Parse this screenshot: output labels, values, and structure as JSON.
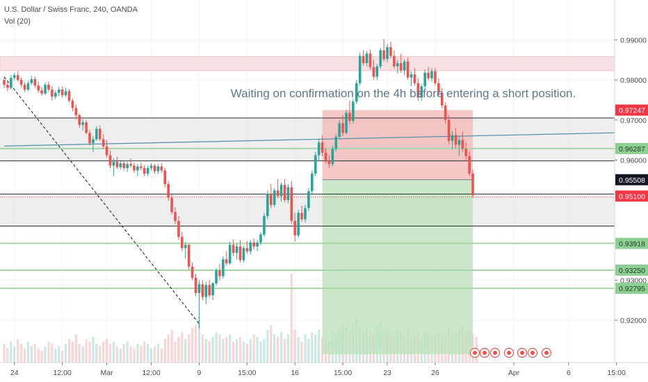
{
  "header": {
    "symbol": "U.S. Dollar / Swiss Franc, 240, OANDA",
    "indicator": "Vol (20)"
  },
  "annotation": "Waiting on confirmation on the 4h before entering a short position.",
  "colors": {
    "up": "#26a69a",
    "down": "#ef5350",
    "zone_grey": "#e3e3e3",
    "zone_pink": "#f8d7da",
    "green_line": "#a5d6a7",
    "trend_blue": "#4f8fa7",
    "stop_zone": "#f4b6b6",
    "target_zone": "#b9e0b9",
    "label_red": "#f23645",
    "label_dark": "#131722"
  },
  "chart_data": {
    "type": "candlestick",
    "title": "",
    "ylim": [
      0.9115,
      0.9965
    ],
    "y_ticks": [
      {
        "value": 0.99,
        "text": "0.99000"
      },
      {
        "value": 0.98,
        "text": "0.98000"
      },
      {
        "value": 0.97,
        "text": "0.97000"
      },
      {
        "value": 0.96,
        "text": "0.96000"
      },
      {
        "value": 0.93,
        "text": "0.93000"
      },
      {
        "value": 0.92,
        "text": "0.92000"
      }
    ],
    "price_labels": [
      {
        "value": 0.97247,
        "text": "0.97247",
        "style": "red"
      },
      {
        "value": 0.96287,
        "text": "0.96287",
        "style": "green"
      },
      {
        "value": 0.95508,
        "text": "0.95508",
        "style": "dark"
      },
      {
        "value": 0.951,
        "text": "0.95100",
        "style": "red"
      },
      {
        "value": 0.93918,
        "text": "0.93918",
        "style": "green"
      },
      {
        "value": 0.9325,
        "text": "0.93250",
        "style": "green"
      },
      {
        "value": 0.92795,
        "text": "0.92795",
        "style": "green"
      }
    ],
    "time_labels": [
      {
        "index": 3,
        "text": "24"
      },
      {
        "index": 17,
        "text": "12:00"
      },
      {
        "index": 30,
        "text": "Mar"
      },
      {
        "index": 43,
        "text": "12:00"
      },
      {
        "index": 57,
        "text": "9"
      },
      {
        "index": 71,
        "text": "15:00"
      },
      {
        "index": 85,
        "text": "16"
      },
      {
        "index": 99,
        "text": "15:00"
      },
      {
        "index": 112,
        "text": "23"
      },
      {
        "index": 126,
        "text": "26"
      },
      {
        "index": 149,
        "text": "Apr"
      },
      {
        "index": 165,
        "text": "6"
      },
      {
        "index": 179,
        "text": "15:00"
      }
    ],
    "horizontal_levels": [
      {
        "value": 0.9705,
        "kind": "black"
      },
      {
        "value": 0.9598,
        "kind": "black"
      },
      {
        "value": 0.9515,
        "kind": "black"
      },
      {
        "value": 0.9435,
        "kind": "black"
      },
      {
        "value": 0.96287,
        "kind": "green"
      },
      {
        "value": 0.93918,
        "kind": "green"
      },
      {
        "value": 0.9325,
        "kind": "green"
      },
      {
        "value": 0.92795,
        "kind": "green"
      }
    ],
    "zones": [
      {
        "from": 0.9705,
        "to": 0.9598,
        "kind": "grey"
      },
      {
        "from": 0.9515,
        "to": 0.9435,
        "kind": "grey"
      },
      {
        "from": 0.98583,
        "to": 0.98233,
        "kind": "pink"
      }
    ],
    "position": {
      "side": "short",
      "start_index": 93,
      "end_index": 137,
      "entry": 0.95508,
      "stop": 0.97247,
      "target": 0.9115
    },
    "trendlines": [
      {
        "x1": 0,
        "y1": 0.9808,
        "x2": 57,
        "y2": 0.9191,
        "style": "dashed"
      },
      {
        "x1": 0,
        "y1": 0.9635,
        "x2": 181,
        "y2": 0.9668,
        "style": "solid"
      }
    ],
    "candles": [
      [
        0.98,
        0.9806,
        0.978,
        0.9788
      ],
      [
        0.9788,
        0.9795,
        0.9772,
        0.978
      ],
      [
        0.978,
        0.9812,
        0.9776,
        0.9805
      ],
      [
        0.9805,
        0.9818,
        0.9798,
        0.9812
      ],
      [
        0.9812,
        0.9822,
        0.9795,
        0.98
      ],
      [
        0.98,
        0.9806,
        0.9782,
        0.9788
      ],
      [
        0.9788,
        0.9794,
        0.977,
        0.9776
      ],
      [
        0.9776,
        0.9798,
        0.9772,
        0.9792
      ],
      [
        0.9792,
        0.981,
        0.9788,
        0.9802
      ],
      [
        0.9802,
        0.9808,
        0.978,
        0.9786
      ],
      [
        0.9786,
        0.9796,
        0.9768,
        0.9774
      ],
      [
        0.9774,
        0.9782,
        0.976,
        0.9766
      ],
      [
        0.9766,
        0.9794,
        0.9762,
        0.9788
      ],
      [
        0.9788,
        0.9796,
        0.977,
        0.9776
      ],
      [
        0.9776,
        0.9784,
        0.9748,
        0.9758
      ],
      [
        0.9758,
        0.9774,
        0.9752,
        0.9768
      ],
      [
        0.9768,
        0.9782,
        0.976,
        0.9776
      ],
      [
        0.9776,
        0.9784,
        0.9756,
        0.9762
      ],
      [
        0.9762,
        0.978,
        0.9758,
        0.9772
      ],
      [
        0.9772,
        0.9778,
        0.9744,
        0.9748
      ],
      [
        0.9748,
        0.9754,
        0.9722,
        0.973
      ],
      [
        0.973,
        0.9738,
        0.9702,
        0.9712
      ],
      [
        0.9712,
        0.9716,
        0.968,
        0.9688
      ],
      [
        0.9688,
        0.9702,
        0.9674,
        0.9694
      ],
      [
        0.9694,
        0.97,
        0.9664,
        0.9668
      ],
      [
        0.9668,
        0.9676,
        0.9636,
        0.9642
      ],
      [
        0.9642,
        0.966,
        0.962,
        0.9652
      ],
      [
        0.9652,
        0.9684,
        0.9648,
        0.9678
      ],
      [
        0.9678,
        0.9686,
        0.9648,
        0.9652
      ],
      [
        0.9652,
        0.9664,
        0.9628,
        0.9634
      ],
      [
        0.9634,
        0.965,
        0.9606,
        0.9612
      ],
      [
        0.9612,
        0.9624,
        0.958,
        0.9586
      ],
      [
        0.9586,
        0.9604,
        0.956,
        0.9596
      ],
      [
        0.9596,
        0.9608,
        0.9578,
        0.9582
      ],
      [
        0.9582,
        0.96,
        0.9576,
        0.9592
      ],
      [
        0.9592,
        0.9598,
        0.9574,
        0.958
      ],
      [
        0.958,
        0.9596,
        0.957,
        0.959
      ],
      [
        0.959,
        0.9604,
        0.9582,
        0.9586
      ],
      [
        0.9586,
        0.9594,
        0.9568,
        0.9574
      ],
      [
        0.9574,
        0.959,
        0.956,
        0.9584
      ],
      [
        0.9584,
        0.9594,
        0.9574,
        0.958
      ],
      [
        0.958,
        0.9588,
        0.956,
        0.9566
      ],
      [
        0.9566,
        0.9586,
        0.956,
        0.958
      ],
      [
        0.958,
        0.9592,
        0.9574,
        0.9586
      ],
      [
        0.9586,
        0.959,
        0.9566,
        0.9572
      ],
      [
        0.9572,
        0.959,
        0.9566,
        0.9584
      ],
      [
        0.9584,
        0.9592,
        0.9568,
        0.9574
      ],
      [
        0.9574,
        0.958,
        0.9532,
        0.954
      ],
      [
        0.954,
        0.9548,
        0.9498,
        0.9506
      ],
      [
        0.9506,
        0.9514,
        0.9464,
        0.947
      ],
      [
        0.947,
        0.9482,
        0.944,
        0.9448
      ],
      [
        0.9448,
        0.946,
        0.94,
        0.9408
      ],
      [
        0.9408,
        0.942,
        0.9372,
        0.938
      ],
      [
        0.938,
        0.9396,
        0.9354,
        0.9388
      ],
      [
        0.9388,
        0.9392,
        0.9326,
        0.9334
      ],
      [
        0.9334,
        0.9344,
        0.93,
        0.9306
      ],
      [
        0.9306,
        0.9316,
        0.926,
        0.9268
      ],
      [
        0.9268,
        0.93,
        0.918,
        0.929
      ],
      [
        0.929,
        0.93,
        0.925,
        0.9258
      ],
      [
        0.9258,
        0.9296,
        0.924,
        0.9288
      ],
      [
        0.9288,
        0.93,
        0.9256,
        0.9262
      ],
      [
        0.9262,
        0.9296,
        0.925,
        0.9292
      ],
      [
        0.9292,
        0.933,
        0.9286,
        0.9324
      ],
      [
        0.9324,
        0.934,
        0.93,
        0.931
      ],
      [
        0.931,
        0.936,
        0.9304,
        0.9352
      ],
      [
        0.9352,
        0.9372,
        0.9336,
        0.9342
      ],
      [
        0.9342,
        0.9396,
        0.9338,
        0.9388
      ],
      [
        0.9388,
        0.9402,
        0.936,
        0.9368
      ],
      [
        0.9368,
        0.9392,
        0.9352,
        0.9384
      ],
      [
        0.9384,
        0.94,
        0.9344,
        0.935
      ],
      [
        0.935,
        0.9386,
        0.9344,
        0.938
      ],
      [
        0.938,
        0.9398,
        0.9366,
        0.9372
      ],
      [
        0.9372,
        0.94,
        0.9364,
        0.9394
      ],
      [
        0.9394,
        0.9404,
        0.9376,
        0.9384
      ],
      [
        0.9384,
        0.94,
        0.9372,
        0.9394
      ],
      [
        0.9394,
        0.942,
        0.9388,
        0.9414
      ],
      [
        0.9414,
        0.9468,
        0.9408,
        0.946
      ],
      [
        0.946,
        0.9524,
        0.9452,
        0.9516
      ],
      [
        0.9516,
        0.954,
        0.948,
        0.9488
      ],
      [
        0.9488,
        0.953,
        0.9482,
        0.9524
      ],
      [
        0.9524,
        0.9552,
        0.9504,
        0.951
      ],
      [
        0.951,
        0.9544,
        0.9496,
        0.9538
      ],
      [
        0.9538,
        0.9552,
        0.9494,
        0.95
      ],
      [
        0.95,
        0.954,
        0.9492,
        0.9532
      ],
      [
        0.9532,
        0.9548,
        0.944,
        0.9448
      ],
      [
        0.9448,
        0.9468,
        0.9396,
        0.9412
      ],
      [
        0.9412,
        0.9476,
        0.9406,
        0.9468
      ],
      [
        0.9468,
        0.9486,
        0.9446,
        0.9452
      ],
      [
        0.9452,
        0.9488,
        0.9444,
        0.948
      ],
      [
        0.948,
        0.953,
        0.9472,
        0.9522
      ],
      [
        0.9522,
        0.9574,
        0.9516,
        0.9566
      ],
      [
        0.9566,
        0.962,
        0.956,
        0.9612
      ],
      [
        0.9612,
        0.9652,
        0.96,
        0.9644
      ],
      [
        0.9644,
        0.9662,
        0.961,
        0.9618
      ],
      [
        0.9618,
        0.963,
        0.9592,
        0.9598
      ],
      [
        0.9598,
        0.9612,
        0.958,
        0.959
      ],
      [
        0.959,
        0.9636,
        0.9584,
        0.9628
      ],
      [
        0.9628,
        0.9664,
        0.9622,
        0.9658
      ],
      [
        0.9658,
        0.97,
        0.9652,
        0.9692
      ],
      [
        0.9692,
        0.9712,
        0.966,
        0.9668
      ],
      [
        0.9668,
        0.9726,
        0.9664,
        0.9718
      ],
      [
        0.9718,
        0.9748,
        0.969,
        0.9698
      ],
      [
        0.9698,
        0.9752,
        0.9692,
        0.9746
      ],
      [
        0.9746,
        0.98,
        0.974,
        0.9792
      ],
      [
        0.9792,
        0.9868,
        0.9786,
        0.986
      ],
      [
        0.986,
        0.9874,
        0.9836,
        0.9842
      ],
      [
        0.9842,
        0.9872,
        0.9834,
        0.9866
      ],
      [
        0.9866,
        0.9876,
        0.9826,
        0.9832
      ],
      [
        0.9832,
        0.985,
        0.98,
        0.9808
      ],
      [
        0.9808,
        0.984,
        0.98,
        0.9834
      ],
      [
        0.9834,
        0.988,
        0.9828,
        0.9874
      ],
      [
        0.9874,
        0.9902,
        0.9846,
        0.9852
      ],
      [
        0.9852,
        0.989,
        0.9844,
        0.9882
      ],
      [
        0.9882,
        0.9896,
        0.9854,
        0.986
      ],
      [
        0.986,
        0.9874,
        0.9828,
        0.9834
      ],
      [
        0.9834,
        0.985,
        0.9816,
        0.9842
      ],
      [
        0.9842,
        0.9866,
        0.9818,
        0.9824
      ],
      [
        0.9824,
        0.9852,
        0.9812,
        0.9846
      ],
      [
        0.9846,
        0.9856,
        0.98,
        0.9806
      ],
      [
        0.9806,
        0.9822,
        0.9784,
        0.9814
      ],
      [
        0.9814,
        0.983,
        0.9786,
        0.9792
      ],
      [
        0.9792,
        0.9804,
        0.9748,
        0.9756
      ],
      [
        0.9756,
        0.979,
        0.9748,
        0.9784
      ],
      [
        0.9784,
        0.9826,
        0.9778,
        0.9818
      ],
      [
        0.9818,
        0.9832,
        0.9798,
        0.9804
      ],
      [
        0.9804,
        0.983,
        0.9796,
        0.9822
      ],
      [
        0.9822,
        0.983,
        0.9786,
        0.9792
      ],
      [
        0.9792,
        0.9804,
        0.976,
        0.9768
      ],
      [
        0.9768,
        0.978,
        0.9728,
        0.9736
      ],
      [
        0.9736,
        0.9744,
        0.969,
        0.97
      ],
      [
        0.97,
        0.9712,
        0.964,
        0.9648
      ],
      [
        0.9648,
        0.9672,
        0.9628,
        0.9662
      ],
      [
        0.9662,
        0.968,
        0.963,
        0.9638
      ],
      [
        0.9638,
        0.966,
        0.961,
        0.965
      ],
      [
        0.965,
        0.9672,
        0.962,
        0.9628
      ],
      [
        0.9628,
        0.9644,
        0.96,
        0.961
      ],
      [
        0.961,
        0.9622,
        0.956,
        0.9566
      ],
      [
        0.9566,
        0.9576,
        0.9506,
        0.9512
      ]
    ],
    "volumes": [
      8,
      6,
      9,
      7,
      10,
      8,
      6,
      9,
      7,
      8,
      6,
      5,
      7,
      9,
      8,
      6,
      7,
      5,
      8,
      10,
      9,
      12,
      8,
      7,
      10,
      9,
      11,
      8,
      7,
      9,
      10,
      8,
      9,
      7,
      6,
      8,
      9,
      7,
      6,
      8,
      7,
      9,
      8,
      6,
      7,
      8,
      6,
      10,
      12,
      14,
      9,
      11,
      13,
      10,
      12,
      15,
      16,
      18,
      12,
      10,
      9,
      11,
      13,
      12,
      10,
      11,
      12,
      9,
      10,
      11,
      9,
      8,
      10,
      12,
      11,
      9,
      10,
      14,
      16,
      12,
      11,
      13,
      10,
      12,
      38,
      14,
      11,
      9,
      12,
      10,
      13,
      12,
      14,
      11,
      10,
      9,
      13,
      12,
      14,
      16,
      15,
      13,
      17,
      19,
      16,
      14,
      15,
      13,
      12,
      16,
      18,
      14,
      13,
      12,
      11,
      14,
      13,
      12,
      15,
      11,
      12,
      14,
      10,
      13,
      12,
      11,
      12,
      13,
      11,
      12,
      15,
      13,
      12,
      14,
      16,
      13,
      14,
      12,
      11
    ]
  }
}
